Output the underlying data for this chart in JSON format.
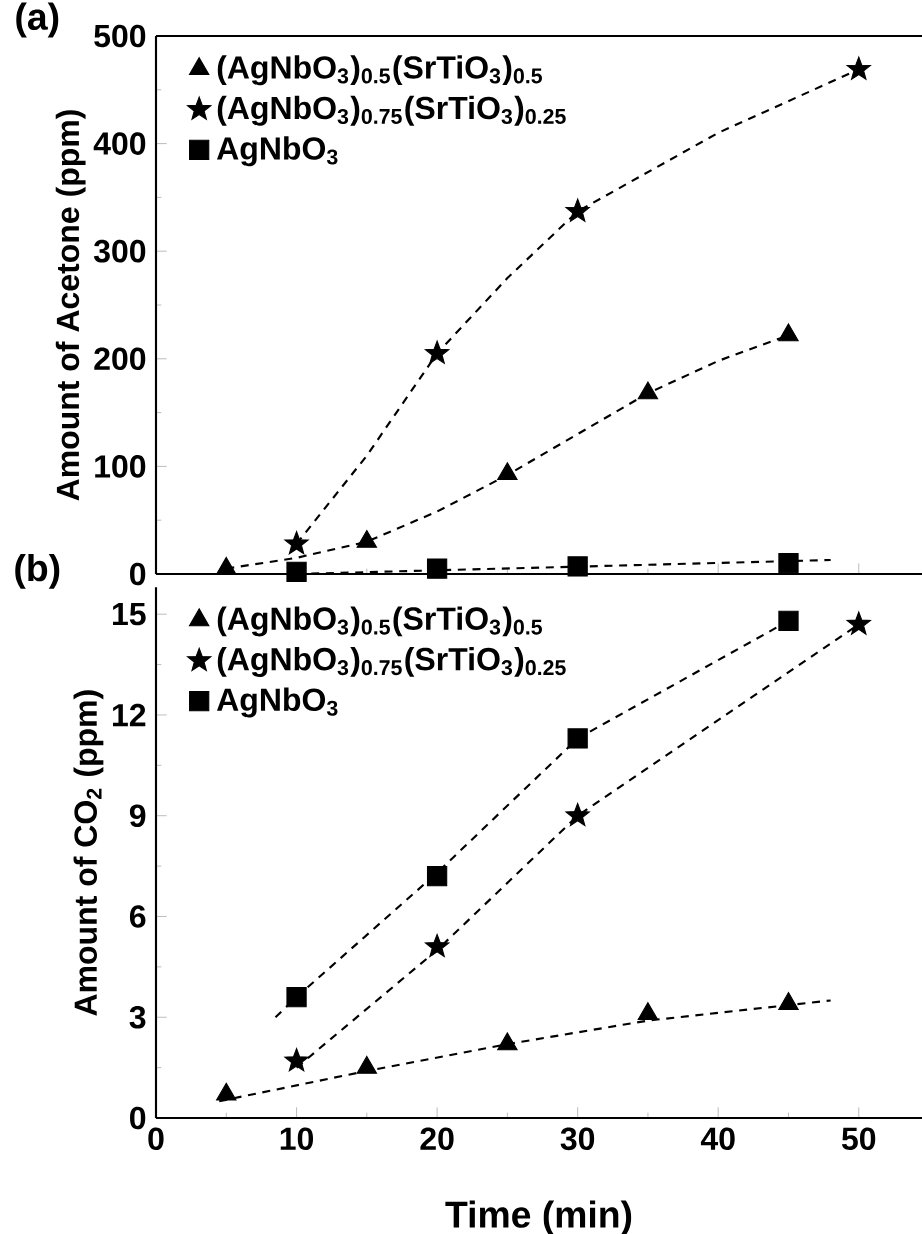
{
  "chart_data": [
    {
      "type": "scatter",
      "title": "(a)",
      "ylabel": "Amount of Acetone (ppm)",
      "xlim": [
        0,
        54.5
      ],
      "ylim": [
        0,
        500
      ],
      "xticks": [
        0,
        10,
        20,
        30,
        40,
        50
      ],
      "yticks": [
        0,
        100,
        200,
        300,
        400,
        500
      ],
      "tick_labels": "y",
      "legend": "top left",
      "grid": false,
      "series": [
        {
          "name": "(AgNbO$_{3}$)$_{0.5}$(SrTiO$_{3}$)$_{0.5}$",
          "color": "#000000",
          "marker": "triangle",
          "x": [
            5,
            15,
            25,
            35,
            45
          ],
          "values": [
            5,
            30,
            93,
            168,
            222
          ]
        },
        {
          "name": "(AgNbO$_{3}$)$_{0.75}$(SrTiO$_{3}$)$_{0.25}$",
          "color": "#000000",
          "marker": "star",
          "x": [
            10,
            20,
            30,
            50
          ],
          "values": [
            28,
            205,
            337,
            469
          ]
        },
        {
          "name": "AgNbO$_{3}$",
          "color": "#000000",
          "marker": "square",
          "x": [
            10,
            20,
            30,
            45
          ],
          "values": [
            2,
            5,
            7,
            10
          ]
        },
        {
          "type": "line",
          "color": "#000000",
          "line_style": "dashed",
          "marker": "none",
          "x": [
            5,
            10,
            15,
            20,
            25,
            30,
            35,
            40,
            45
          ],
          "values": [
            5,
            15,
            30,
            58,
            92,
            130,
            168,
            198,
            222
          ]
        },
        {
          "type": "line",
          "color": "#000000",
          "line_style": "dashed",
          "marker": "none",
          "x": [
            10,
            15,
            20,
            25,
            30,
            40,
            50
          ],
          "values": [
            28,
            110,
            205,
            275,
            337,
            410,
            469
          ]
        },
        {
          "type": "line",
          "color": "#000000",
          "line_style": "dashed",
          "marker": "none",
          "x": [
            10,
            48
          ],
          "values": [
            0,
            13
          ]
        }
      ]
    },
    {
      "type": "scatter",
      "title": "(b)",
      "xlabel": "Time (min)",
      "ylabel": "Amount of CO$_{2}$ (ppm)",
      "xlim": [
        0,
        54.5
      ],
      "ylim": [
        0,
        15.8
      ],
      "xticks": [
        0,
        10,
        20,
        30,
        40,
        50
      ],
      "yticks": [
        0,
        3,
        6,
        9,
        12,
        15
      ],
      "legend": "top left",
      "grid": false,
      "series": [
        {
          "name": "(AgNbO$_{3}$)$_{0.5}$(SrTiO$_{3}$)$_{0.5}$",
          "color": "#000000",
          "marker": "triangle",
          "x": [
            5,
            15,
            25,
            35,
            45
          ],
          "values": [
            0.7,
            1.5,
            2.2,
            3.1,
            3.4
          ]
        },
        {
          "name": "(AgNbO$_{3}$)$_{0.75}$(SrTiO$_{3}$)$_{0.25}$",
          "color": "#000000",
          "marker": "star",
          "x": [
            10,
            20,
            30,
            50
          ],
          "values": [
            1.7,
            5.1,
            9.0,
            14.7
          ]
        },
        {
          "name": "AgNbO$_{3}$",
          "color": "#000000",
          "marker": "square",
          "x": [
            10,
            20,
            30,
            45
          ],
          "values": [
            3.6,
            7.2,
            11.3,
            14.8
          ]
        },
        {
          "type": "line",
          "color": "#000000",
          "line_style": "dashed",
          "marker": "none",
          "x": [
            4.5,
            15,
            25,
            35,
            48
          ],
          "values": [
            0.5,
            1.4,
            2.2,
            2.9,
            3.5
          ]
        },
        {
          "type": "line",
          "color": "#000000",
          "line_style": "dashed",
          "marker": "none",
          "x": [
            10,
            20,
            30,
            50
          ],
          "values": [
            1.5,
            5.0,
            9.0,
            14.7
          ]
        },
        {
          "type": "line",
          "color": "#000000",
          "line_style": "dashed",
          "marker": "none",
          "x": [
            8.5,
            10,
            20,
            30,
            45
          ],
          "values": [
            3.0,
            3.6,
            7.3,
            11.3,
            14.8
          ]
        }
      ]
    }
  ]
}
